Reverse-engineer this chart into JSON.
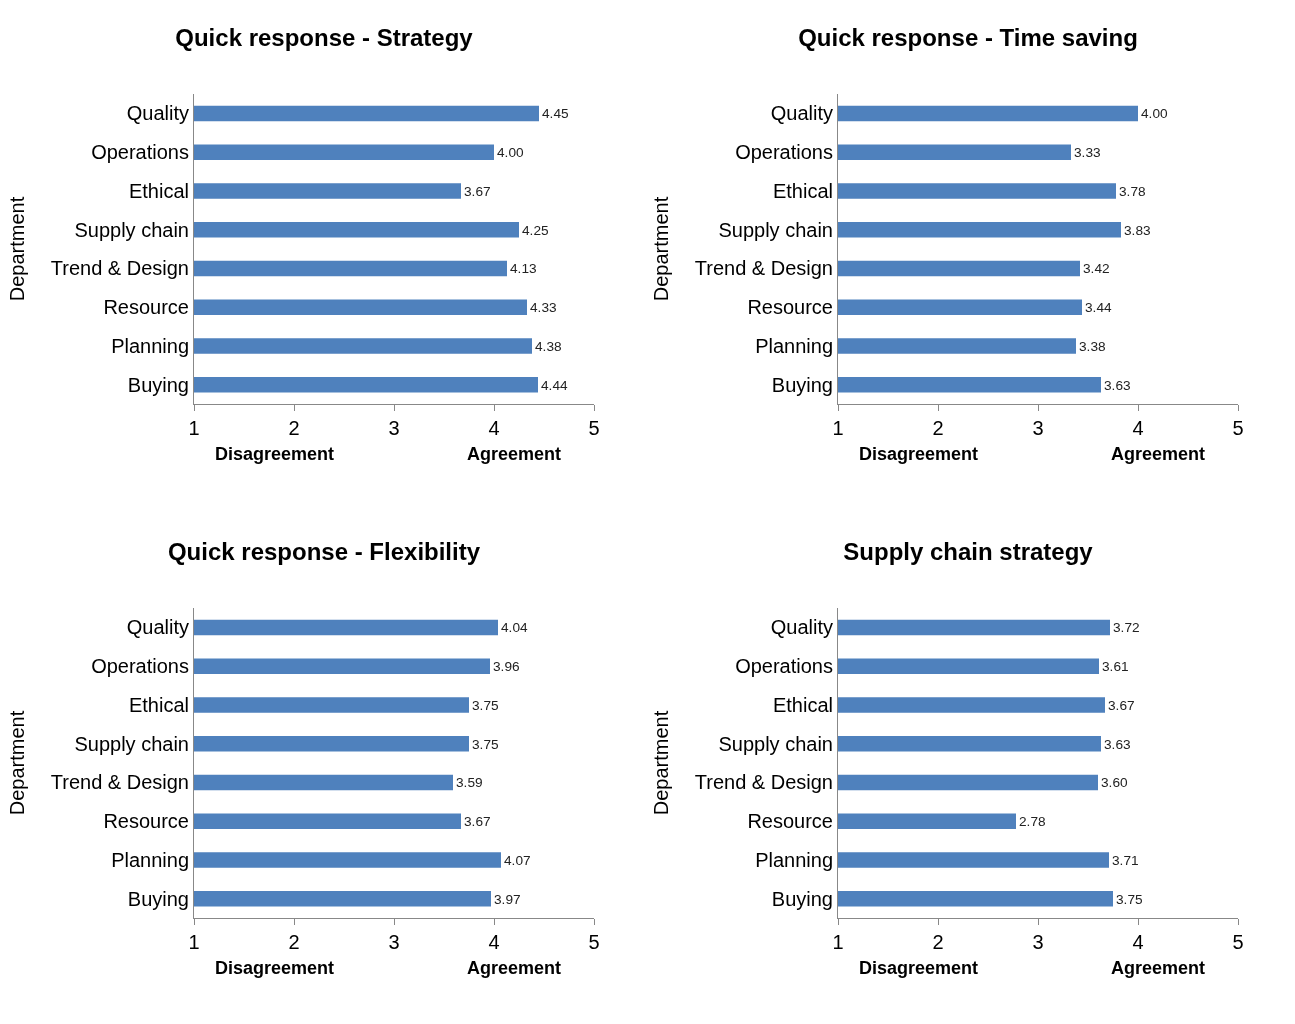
{
  "chart_data": [
    {
      "type": "bar",
      "orientation": "horizontal",
      "title": "Quick response - Strategy",
      "ylabel": "Department",
      "categories": [
        "Quality",
        "Operations",
        "Ethical",
        "Supply chain",
        "Trend & Design",
        "Resource",
        "Planning",
        "Buying"
      ],
      "values": [
        4.45,
        4.0,
        3.67,
        4.25,
        4.13,
        4.33,
        4.38,
        4.44
      ],
      "value_labels": [
        "4.45",
        "4.00",
        "3.67",
        "4.25",
        "4.13",
        "4.33",
        "4.38",
        "4.44"
      ],
      "color": "#4f81bd",
      "xlim": [
        1,
        5
      ],
      "xticks": [
        1,
        2,
        3,
        4,
        5
      ],
      "grid": false,
      "annotations": [
        "Disagreement",
        "Agreement"
      ]
    },
    {
      "type": "bar",
      "orientation": "horizontal",
      "title": "Quick response - Time saving",
      "ylabel": "Department",
      "categories": [
        "Quality",
        "Operations",
        "Ethical",
        "Supply chain",
        "Trend & Design",
        "Resource",
        "Planning",
        "Buying"
      ],
      "values": [
        4.0,
        3.33,
        3.78,
        3.83,
        3.42,
        3.44,
        3.38,
        3.63
      ],
      "value_labels": [
        "4.00",
        "3.33",
        "3.78",
        "3.83",
        "3.42",
        "3.44",
        "3.38",
        "3.63"
      ],
      "color": "#4f81bd",
      "xlim": [
        1,
        5
      ],
      "xticks": [
        1,
        2,
        3,
        4,
        5
      ],
      "grid": false,
      "annotations": [
        "Disagreement",
        "Agreement"
      ]
    },
    {
      "type": "bar",
      "orientation": "horizontal",
      "title": "Quick response - Flexibility",
      "ylabel": "Department",
      "categories": [
        "Quality",
        "Operations",
        "Ethical",
        "Supply chain",
        "Trend & Design",
        "Resource",
        "Planning",
        "Buying"
      ],
      "values": [
        4.04,
        3.96,
        3.75,
        3.75,
        3.59,
        3.67,
        4.07,
        3.97
      ],
      "value_labels": [
        "4.04",
        "3.96",
        "3.75",
        "3.75",
        "3.59",
        "3.67",
        "4.07",
        "3.97"
      ],
      "color": "#4f81bd",
      "xlim": [
        1,
        5
      ],
      "xticks": [
        1,
        2,
        3,
        4,
        5
      ],
      "grid": false,
      "annotations": [
        "Disagreement",
        "Agreement"
      ]
    },
    {
      "type": "bar",
      "orientation": "horizontal",
      "title": "Supply chain strategy",
      "ylabel": "Department",
      "categories": [
        "Quality",
        "Operations",
        "Ethical",
        "Supply chain",
        "Trend & Design",
        "Resource",
        "Planning",
        "Buying"
      ],
      "values": [
        3.72,
        3.61,
        3.67,
        3.63,
        3.6,
        2.78,
        3.71,
        3.75
      ],
      "value_labels": [
        "3.72",
        "3.61",
        "3.67",
        "3.63",
        "3.60",
        "2.78",
        "3.71",
        "3.75"
      ],
      "color": "#4f81bd",
      "xlim": [
        1,
        5
      ],
      "xticks": [
        1,
        2,
        3,
        4,
        5
      ],
      "grid": false,
      "annotations": [
        "Disagreement",
        "Agreement"
      ]
    }
  ]
}
